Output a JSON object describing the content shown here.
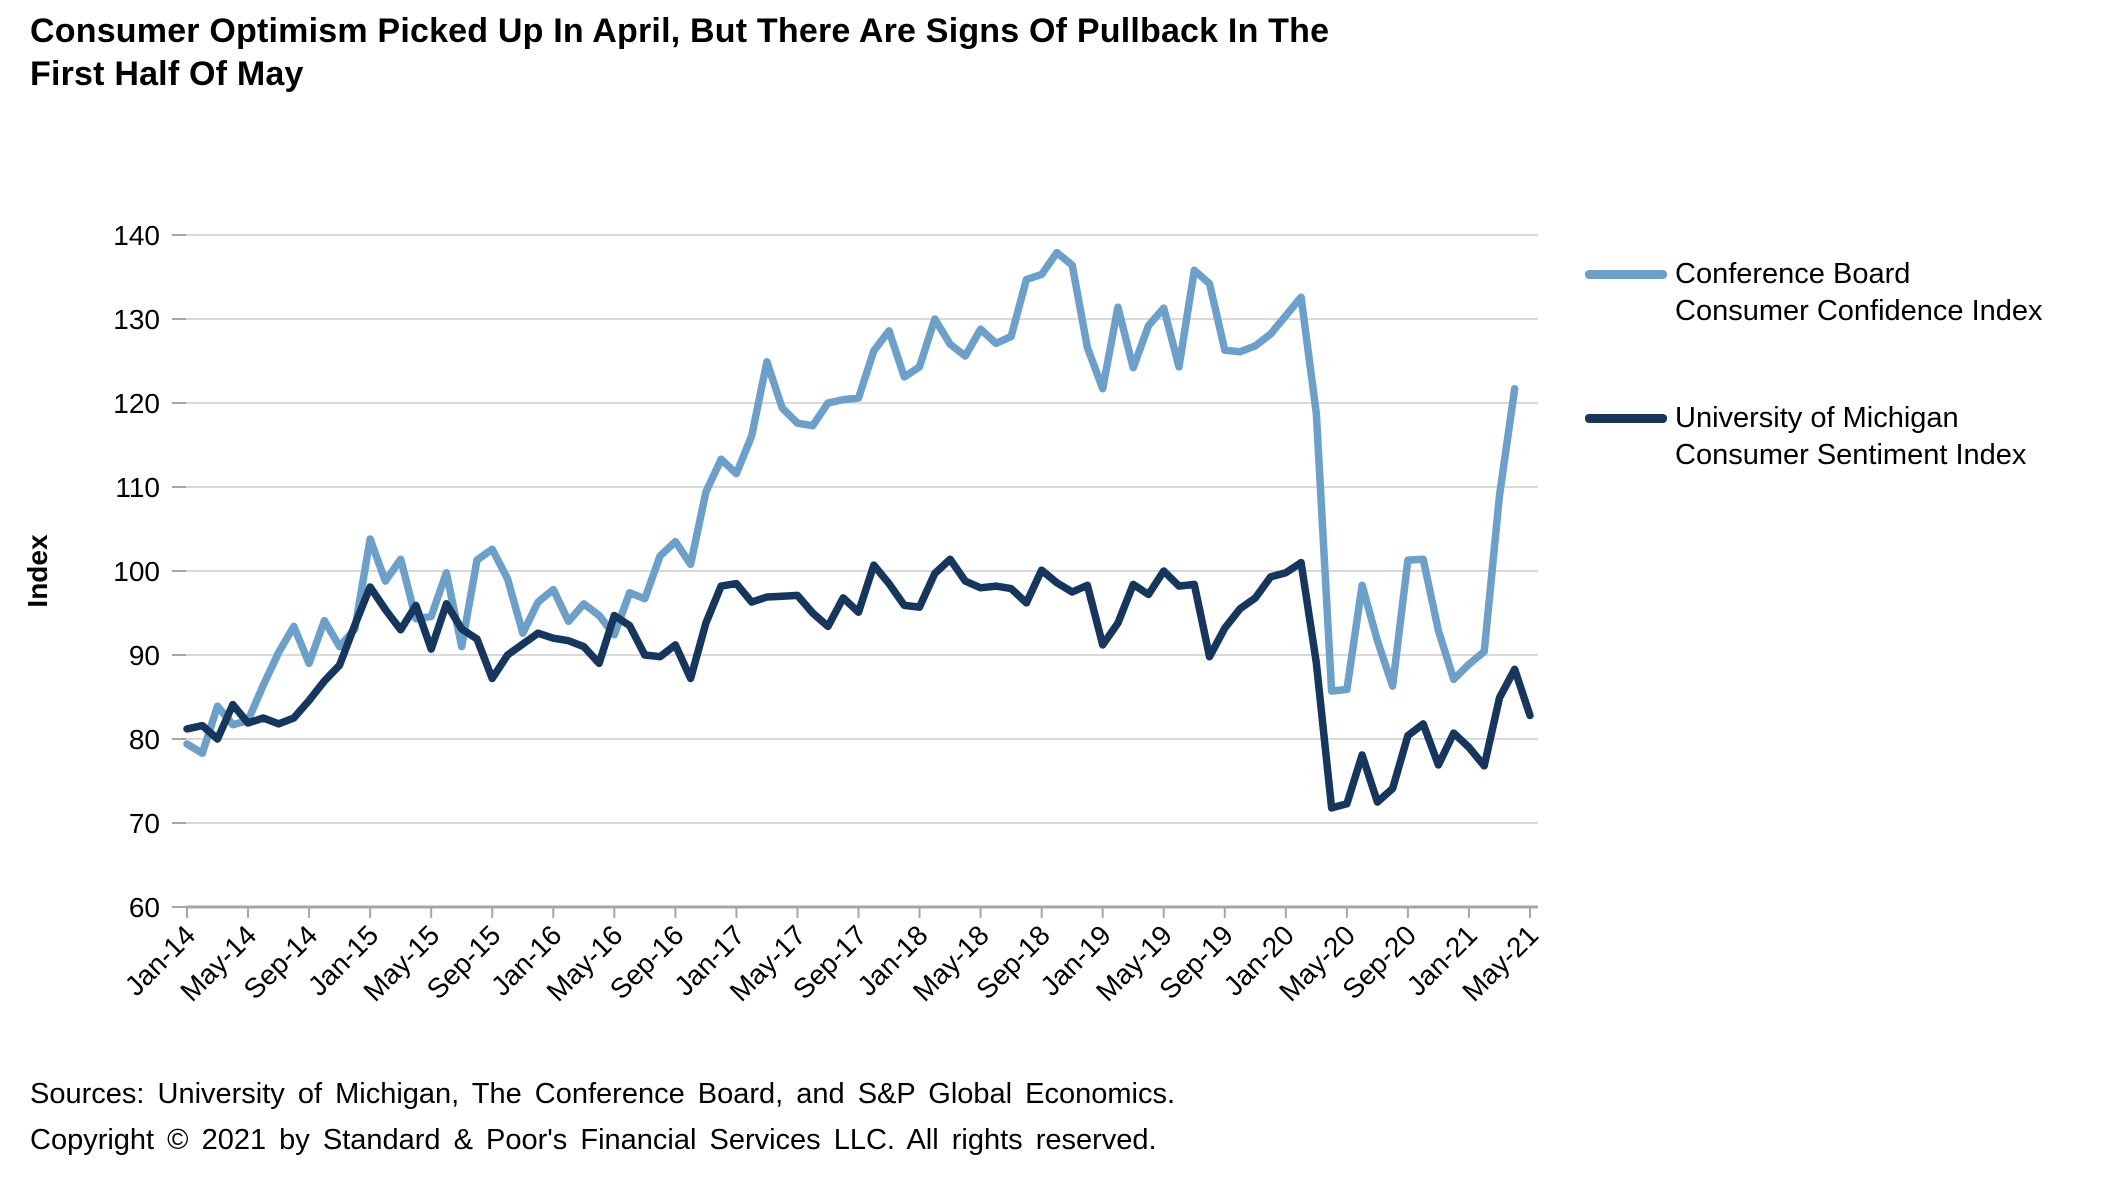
{
  "title": "Consumer Optimism Picked Up In April, But There Are Signs Of Pullback In The\nFirst Half Of May",
  "footer": {
    "sources": "Sources: University of Michigan, The Conference Board, and S&P Global Economics.",
    "copyright": "Copyright © 2021 by Standard & Poor's Financial Services LLC. All rights reserved."
  },
  "legend": {
    "items": [
      {
        "label": "Conference Board\nConsumer Confidence Index",
        "color": "#6DA0C8"
      },
      {
        "label": "University of Michigan\nConsumer Sentiment Index",
        "color": "#17365D"
      }
    ]
  },
  "colors": {
    "series_blue": "#6DA0C8",
    "series_navy": "#17365D",
    "gridline": "#D9D9D9",
    "axis": "#A6A6A6",
    "text": "#000000"
  },
  "chart_data": {
    "type": "line",
    "title": "Consumer Optimism Picked Up In April, But There Are Signs Of Pullback In The First Half Of May",
    "xlabel": "",
    "ylabel": "Index",
    "ylim": [
      60,
      140
    ],
    "ytick_step": 10,
    "ytick_labels": [
      "60",
      "70",
      "80",
      "90",
      "100",
      "110",
      "120",
      "130",
      "140"
    ],
    "grid": true,
    "legend_position": "right",
    "x_tick_labels": [
      "Jan-14",
      "May-14",
      "Sep-14",
      "Jan-15",
      "May-15",
      "Sep-15",
      "Jan-16",
      "May-16",
      "Sep-16",
      "Jan-17",
      "May-17",
      "Sep-17",
      "Jan-18",
      "May-18",
      "Sep-18",
      "Jan-19",
      "May-19",
      "Sep-19",
      "Jan-20",
      "May-20",
      "Sep-20",
      "Jan-21",
      "May-21"
    ],
    "x_tick_every": 4,
    "months": [
      "Jan-14",
      "Feb-14",
      "Mar-14",
      "Apr-14",
      "May-14",
      "Jun-14",
      "Jul-14",
      "Aug-14",
      "Sep-14",
      "Oct-14",
      "Nov-14",
      "Dec-14",
      "Jan-15",
      "Feb-15",
      "Mar-15",
      "Apr-15",
      "May-15",
      "Jun-15",
      "Jul-15",
      "Aug-15",
      "Sep-15",
      "Oct-15",
      "Nov-15",
      "Dec-15",
      "Jan-16",
      "Feb-16",
      "Mar-16",
      "Apr-16",
      "May-16",
      "Jun-16",
      "Jul-16",
      "Aug-16",
      "Sep-16",
      "Oct-16",
      "Nov-16",
      "Dec-16",
      "Jan-17",
      "Feb-17",
      "Mar-17",
      "Apr-17",
      "May-17",
      "Jun-17",
      "Jul-17",
      "Aug-17",
      "Sep-17",
      "Oct-17",
      "Nov-17",
      "Dec-17",
      "Jan-18",
      "Feb-18",
      "Mar-18",
      "Apr-18",
      "May-18",
      "Jun-18",
      "Jul-18",
      "Aug-18",
      "Sep-18",
      "Oct-18",
      "Nov-18",
      "Dec-18",
      "Jan-19",
      "Feb-19",
      "Mar-19",
      "Apr-19",
      "May-19",
      "Jun-19",
      "Jul-19",
      "Aug-19",
      "Sep-19",
      "Oct-19",
      "Nov-19",
      "Dec-19",
      "Jan-20",
      "Feb-20",
      "Mar-20",
      "Apr-20",
      "May-20",
      "Jun-20",
      "Jul-20",
      "Aug-20",
      "Sep-20",
      "Oct-20",
      "Nov-20",
      "Dec-20",
      "Jan-21",
      "Feb-21",
      "Mar-21",
      "Apr-21",
      "May-21"
    ],
    "series": [
      {
        "name": "Conference Board Consumer Confidence Index",
        "color": "#6DA0C8",
        "values": [
          79.4,
          78.3,
          83.9,
          81.7,
          82.2,
          86.4,
          90.3,
          93.4,
          89.0,
          94.1,
          91.0,
          93.1,
          103.8,
          98.8,
          101.4,
          94.3,
          94.6,
          99.8,
          91.0,
          101.3,
          102.6,
          99.1,
          92.6,
          96.3,
          97.8,
          94.0,
          96.1,
          94.7,
          92.4,
          97.4,
          96.7,
          101.8,
          103.5,
          100.8,
          109.4,
          113.3,
          111.6,
          116.1,
          124.9,
          119.4,
          117.6,
          117.3,
          120.0,
          120.4,
          120.6,
          126.2,
          128.6,
          123.1,
          124.3,
          130.0,
          127.0,
          125.6,
          128.8,
          127.1,
          127.9,
          134.7,
          135.3,
          137.9,
          136.4,
          126.6,
          121.7,
          131.4,
          124.2,
          129.2,
          131.3,
          124.3,
          135.8,
          134.2,
          126.3,
          126.1,
          126.8,
          128.2,
          130.4,
          132.6,
          118.8,
          85.7,
          85.9,
          98.3,
          91.7,
          86.3,
          101.3,
          101.4,
          92.9,
          87.1,
          88.9,
          90.4,
          109.0,
          121.7,
          null
        ]
      },
      {
        "name": "University of Michigan Consumer Sentiment Index",
        "color": "#17365D",
        "values": [
          81.2,
          81.6,
          80.0,
          84.1,
          81.9,
          82.5,
          81.8,
          82.5,
          84.6,
          86.9,
          88.8,
          93.6,
          98.1,
          95.4,
          93.0,
          95.9,
          90.7,
          96.1,
          93.1,
          91.9,
          87.2,
          90.0,
          91.3,
          92.6,
          92.0,
          91.7,
          91.0,
          89.0,
          94.7,
          93.5,
          90.0,
          89.8,
          91.2,
          87.2,
          93.8,
          98.2,
          98.5,
          96.3,
          96.9,
          97.0,
          97.1,
          95.0,
          93.4,
          96.8,
          95.1,
          100.7,
          98.5,
          95.9,
          95.7,
          99.7,
          101.4,
          98.8,
          98.0,
          98.2,
          97.9,
          96.2,
          100.1,
          98.6,
          97.5,
          98.3,
          91.2,
          93.8,
          98.4,
          97.2,
          100.0,
          98.2,
          98.4,
          89.8,
          93.2,
          95.5,
          96.8,
          99.3,
          99.8,
          101.0,
          89.1,
          71.8,
          72.3,
          78.1,
          72.5,
          74.1,
          80.4,
          81.8,
          76.9,
          80.7,
          79.0,
          76.8,
          84.9,
          88.3,
          82.8
        ]
      }
    ]
  }
}
